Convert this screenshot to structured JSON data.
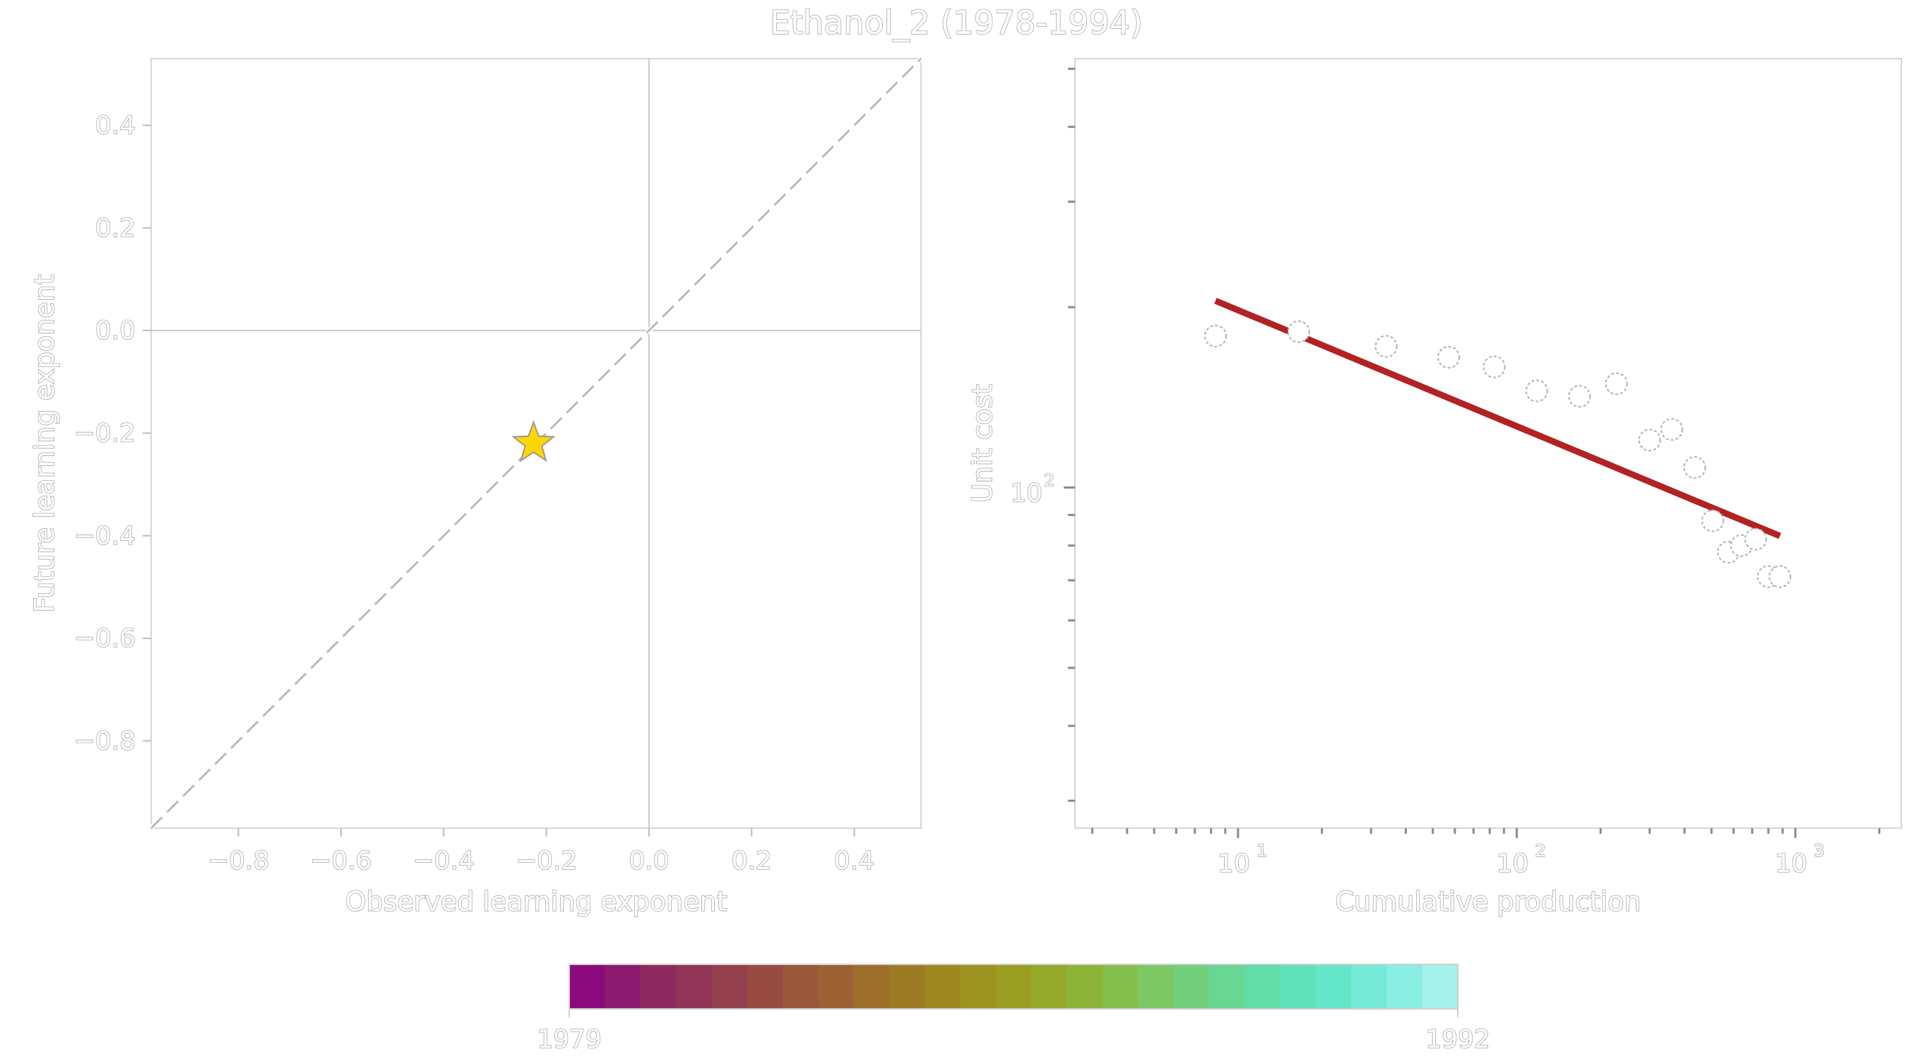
{
  "title": "Ethanol_2 (1978-1994)",
  "chart_data": [
    {
      "type": "scatter",
      "panel": "left",
      "xlabel": "Observed learning exponent",
      "ylabel": "Future learning exponent",
      "xlim": [
        -0.97,
        0.53
      ],
      "ylim": [
        -0.97,
        0.53
      ],
      "x_ticks": [
        -0.8,
        -0.6,
        -0.4,
        -0.2,
        0.0,
        0.2,
        0.4
      ],
      "y_ticks": [
        -0.8,
        -0.6,
        -0.4,
        -0.2,
        0.0,
        0.2,
        0.4
      ],
      "x_tick_labels": [
        "−0.8",
        "−0.6",
        "−0.4",
        "−0.2",
        "0.0",
        "0.2",
        "0.4"
      ],
      "y_tick_labels": [
        "−0.8",
        "−0.6",
        "−0.4",
        "−0.2",
        "0.0",
        "0.2",
        "0.4"
      ],
      "reference_lines": [
        "x=0",
        "y=0",
        "y=x dashed"
      ],
      "points": [
        {
          "x": -0.225,
          "y": -0.22,
          "marker": "star",
          "color": "#ffd700"
        }
      ]
    },
    {
      "type": "scatter",
      "panel": "right",
      "xlabel": "Cumulative production",
      "ylabel": "Unit cost",
      "xscale": "log",
      "yscale": "log",
      "xlim": [
        2.6,
        2400
      ],
      "ylim": [
        27,
        520
      ],
      "x_major_ticks": [
        10,
        100,
        1000
      ],
      "x_tick_labels": [
        {
          "base": "10",
          "exp": "1"
        },
        {
          "base": "10",
          "exp": "2"
        },
        {
          "base": "10",
          "exp": "3"
        }
      ],
      "y_major_ticks": [
        100
      ],
      "y_tick_labels": [
        {
          "base": "10",
          "exp": "2"
        }
      ],
      "points": {
        "x": [
          8.3,
          16.5,
          34,
          57,
          83,
          118,
          168,
          228,
          300,
          360,
          435,
          505,
          575,
          640,
          720,
          800,
          880
        ],
        "y": [
          179,
          182,
          172,
          165,
          159,
          145,
          142,
          149,
          120,
          125,
          108,
          88,
          78,
          80,
          82,
          71,
          71
        ]
      },
      "fit_line": {
        "x": [
          8.3,
          880
        ],
        "y": [
          205,
          83
        ],
        "color": "#b22222"
      }
    }
  ],
  "colorbar": {
    "min_label": "1979",
    "max_label": "1992",
    "colors": [
      "#8b0a7d",
      "#8c1b70",
      "#8e2a60",
      "#913456",
      "#94404d",
      "#974b42",
      "#9a573a",
      "#9c6234",
      "#9d6f2b",
      "#9d7b24",
      "#9d8720",
      "#9c9320",
      "#9a9f23",
      "#95a92b",
      "#8db438",
      "#84bf4b",
      "#7bc865",
      "#72d07c",
      "#69d793",
      "#61dda7",
      "#5fe2b9",
      "#64e6c9",
      "#74ead7",
      "#8aeee3",
      "#a7f1ec"
    ]
  }
}
